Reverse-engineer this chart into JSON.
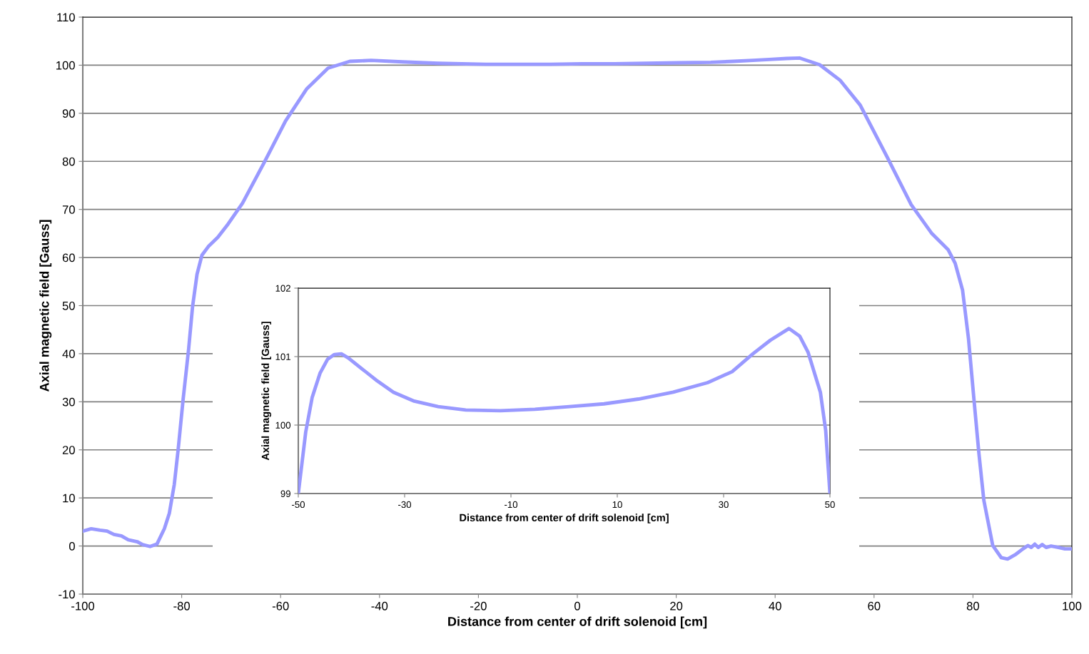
{
  "chart_data": [
    {
      "type": "line",
      "xlabel": "Distance from center of drift solenoid [cm]",
      "ylabel": "Axial magnetic field [Gauss]",
      "xlim": [
        -100,
        100
      ],
      "ylim": [
        -10,
        110
      ],
      "xticks": [
        -100,
        -80,
        -60,
        -40,
        -20,
        0,
        20,
        40,
        60,
        80,
        100
      ],
      "yticks": [
        -10,
        0,
        10,
        20,
        30,
        40,
        50,
        60,
        70,
        80,
        90,
        100,
        110
      ],
      "grid": "y",
      "legend": false,
      "marker": "none",
      "line_style": "solid",
      "series": [
        {
          "color": "#9999ff",
          "x": [
            -100,
            -98.3,
            -96.5,
            -95.1,
            -93.7,
            -92.2,
            -90.8,
            -89,
            -87.9,
            -86.4,
            -85,
            -83.5,
            -82.5,
            -81.5,
            -80.7,
            -79.7,
            -78.6,
            -77.8,
            -76.9,
            -75.9,
            -74.6,
            -72.7,
            -70.6,
            -67.7,
            -63.3,
            -59,
            -54.7,
            -50.4,
            -46,
            -41.7,
            -35.4,
            -28.2,
            -18.5,
            -12,
            -5.5,
            1,
            7.5,
            14,
            20.5,
            27,
            31.6,
            35.5,
            38.8,
            42.3,
            44.9,
            49,
            53.1,
            57.2,
            62.7,
            67.5,
            71.6,
            75,
            76.4,
            77.9,
            79.1,
            80.2,
            81.2,
            82.2,
            84,
            85.7,
            87,
            88.7,
            90.1,
            91.1,
            91.8,
            92.5,
            93.2,
            94,
            94.8,
            95.8,
            97.3,
            98.6,
            100
          ],
          "values": [
            3.1,
            3.6,
            3.3,
            3.1,
            2.4,
            2.1,
            1.3,
            0.9,
            0.3,
            -0.1,
            0.4,
            3.6,
            6.8,
            12.8,
            20.2,
            30.6,
            40.9,
            49.8,
            56.5,
            60.5,
            62.3,
            64.2,
            67,
            71.3,
            79.8,
            88.4,
            95.1,
            99.4,
            100.8,
            101.0,
            100.7,
            100.4,
            100.2,
            100.2,
            100.2,
            100.3,
            100.3,
            100.4,
            100.5,
            100.6,
            100.8,
            101.0,
            101.2,
            101.4,
            101.5,
            100.1,
            96.9,
            91.7,
            80.8,
            71,
            65.1,
            61.6,
            58.8,
            53.2,
            43.1,
            30.5,
            19.3,
            9.5,
            0.1,
            -2.4,
            -2.7,
            -1.7,
            -0.6,
            0.1,
            -0.3,
            0.4,
            -0.3,
            0.3,
            -0.3,
            0,
            -0.3,
            -0.6,
            -0.6
          ]
        }
      ]
    },
    {
      "type": "line",
      "xlabel": "Distance from center of drift solenoid [cm]",
      "ylabel": "Axial magnetic field [Gauss]",
      "xlim": [
        -50,
        50
      ],
      "ylim": [
        99,
        102
      ],
      "xticks": [
        -50,
        -30,
        -10,
        10,
        30,
        50
      ],
      "yticks": [
        99,
        100,
        101,
        102
      ],
      "grid": "y",
      "legend": false,
      "marker": "none",
      "line_style": "solid",
      "series": [
        {
          "color": "#9999ff",
          "x": [
            -50,
            -48.6,
            -47.4,
            -45.9,
            -44.5,
            -43.2,
            -41.9,
            -40.6,
            -38,
            -35.4,
            -32.1,
            -28.2,
            -23.7,
            -18.5,
            -12,
            -5.5,
            1,
            7.5,
            14,
            20.5,
            27,
            31.6,
            35.5,
            38.8,
            42.3,
            44.3,
            45.9,
            48.2,
            49.2,
            50
          ],
          "values": [
            99.0,
            99.9,
            100.4,
            100.76,
            100.96,
            101.03,
            101.04,
            100.98,
            100.82,
            100.66,
            100.48,
            100.35,
            100.27,
            100.22,
            100.21,
            100.23,
            100.27,
            100.31,
            100.38,
            100.48,
            100.62,
            100.78,
            101.04,
            101.24,
            101.41,
            101.3,
            101.06,
            100.48,
            99.92,
            99.0
          ]
        }
      ]
    }
  ]
}
